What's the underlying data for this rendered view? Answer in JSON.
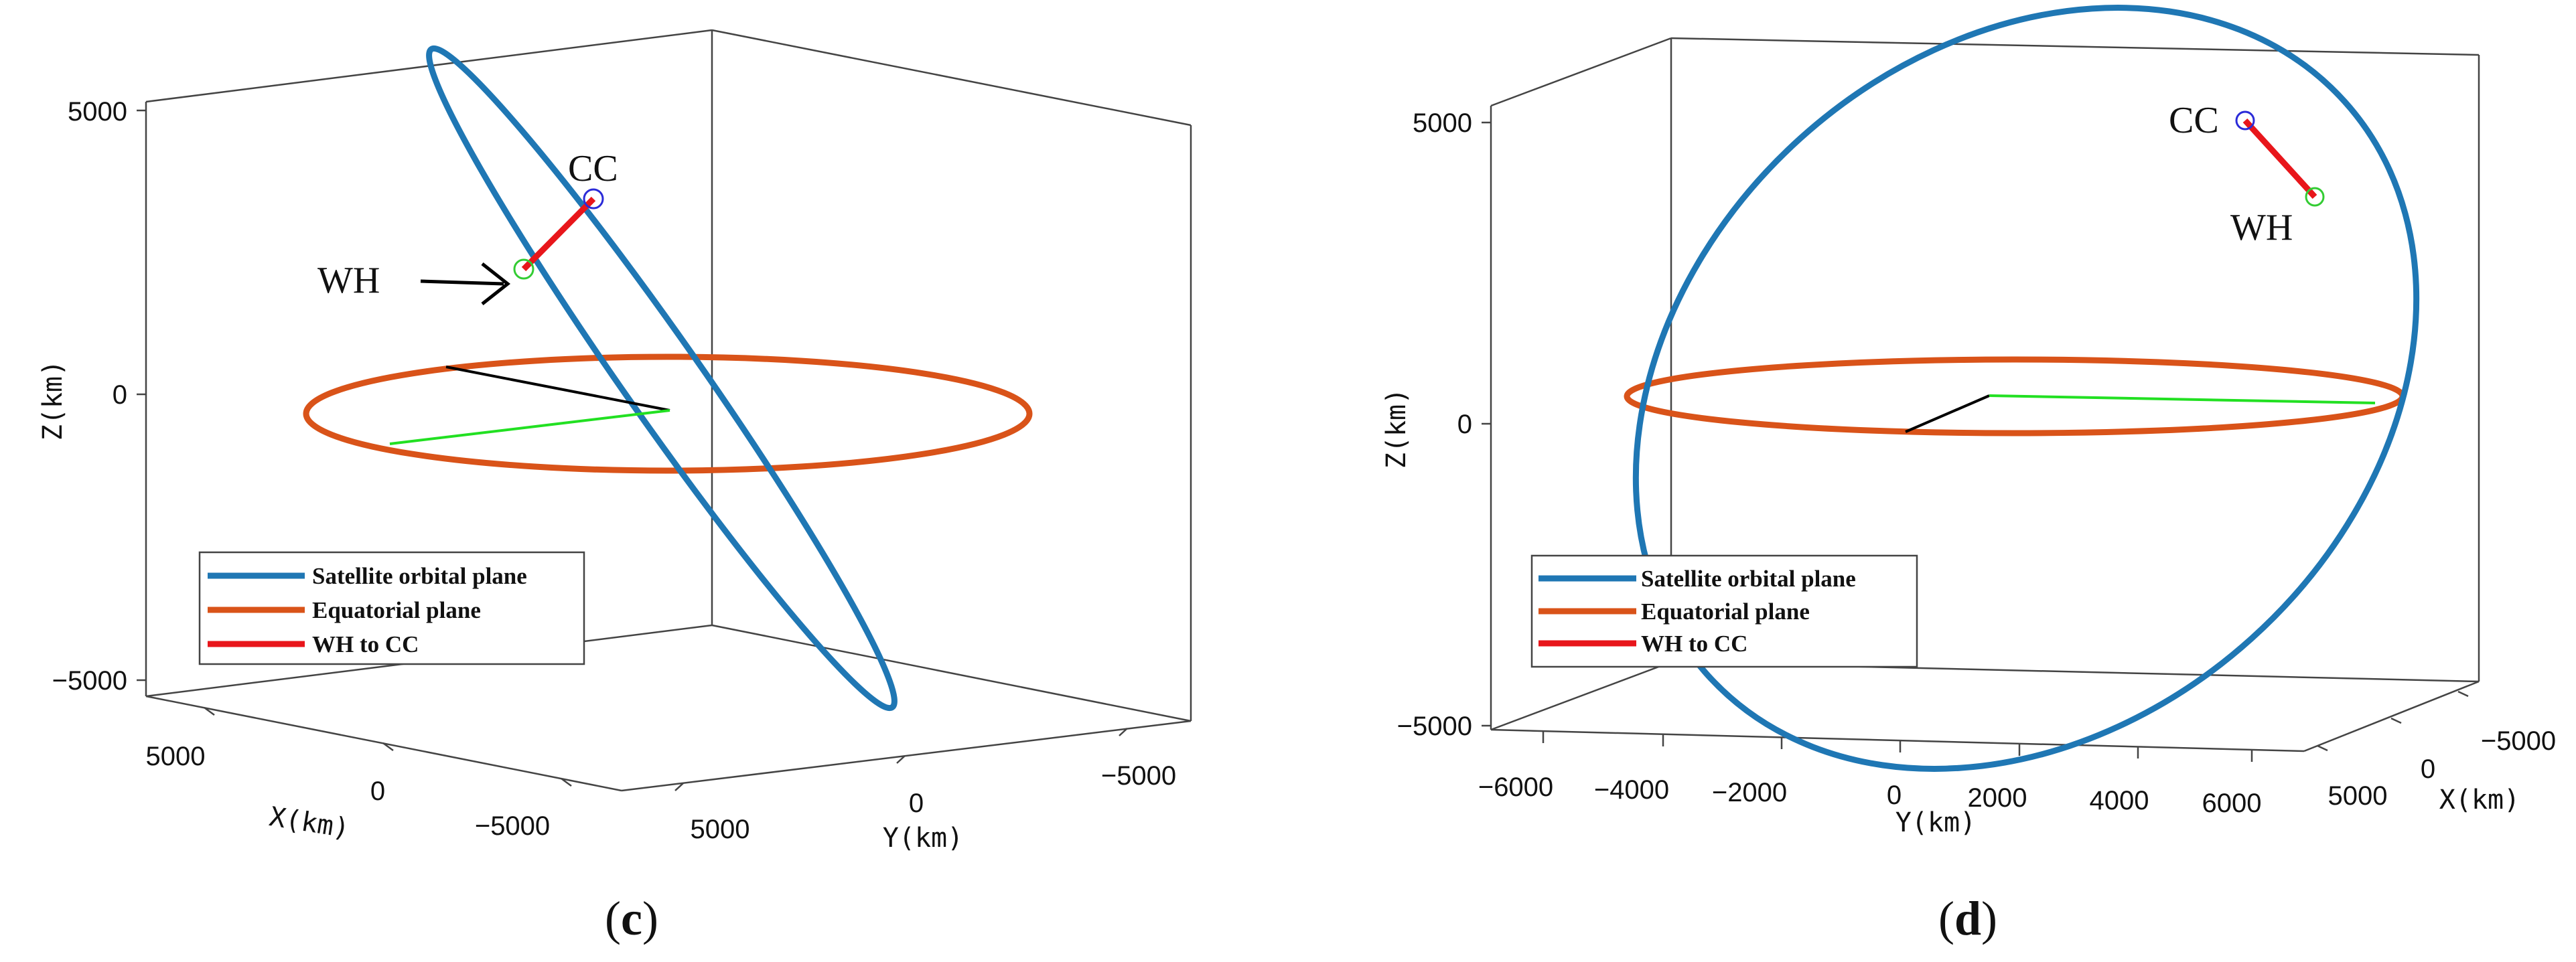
{
  "chart_data": [
    {
      "type": "line",
      "panel_label": "c",
      "xlabel": "X(km)",
      "ylabel": "Y(km)",
      "zlabel": "Z(km)",
      "x_ticks": [
        "5000",
        "0",
        "−5000"
      ],
      "y_ticks": [
        "5000",
        "0",
        "−5000"
      ],
      "z_ticks": [
        "5000",
        "0",
        "−5000"
      ],
      "legend": {
        "placement": "lower-left",
        "entries": [
          {
            "label": "Satellite orbital plane",
            "color": "#1f77b4"
          },
          {
            "label": "Equatorial plane",
            "color": "#d95319"
          },
          {
            "label": "WH to CC",
            "color": "#e8161b"
          }
        ]
      },
      "annotations": [
        {
          "text": "CC",
          "marker_color": "#2b2bd8"
        },
        {
          "text": "WH",
          "marker_color": "#33cc33"
        }
      ]
    },
    {
      "type": "line",
      "panel_label": "d",
      "xlabel": "X(km)",
      "ylabel": "Y(km)",
      "zlabel": "Z(km)",
      "x_ticks": [
        "−5000",
        "0",
        "5000"
      ],
      "y_ticks": [
        "−6000",
        "−4000",
        "−2000",
        "0",
        "2000",
        "4000",
        "6000"
      ],
      "z_ticks": [
        "5000",
        "0",
        "−5000"
      ],
      "legend": {
        "placement": "lower-left",
        "entries": [
          {
            "label": "Satellite orbital plane",
            "color": "#1f77b4"
          },
          {
            "label": "Equatorial plane",
            "color": "#d95319"
          },
          {
            "label": "WH to CC",
            "color": "#e8161b"
          }
        ]
      },
      "annotations": [
        {
          "text": "CC",
          "marker_color": "#2b2bd8"
        },
        {
          "text": "WH",
          "marker_color": "#33cc33"
        }
      ]
    }
  ],
  "colors": {
    "orbit": "#1f77b4",
    "equator": "#d95319",
    "link": "#e8161b",
    "green_line": "#22e022",
    "black_line": "#000000"
  }
}
